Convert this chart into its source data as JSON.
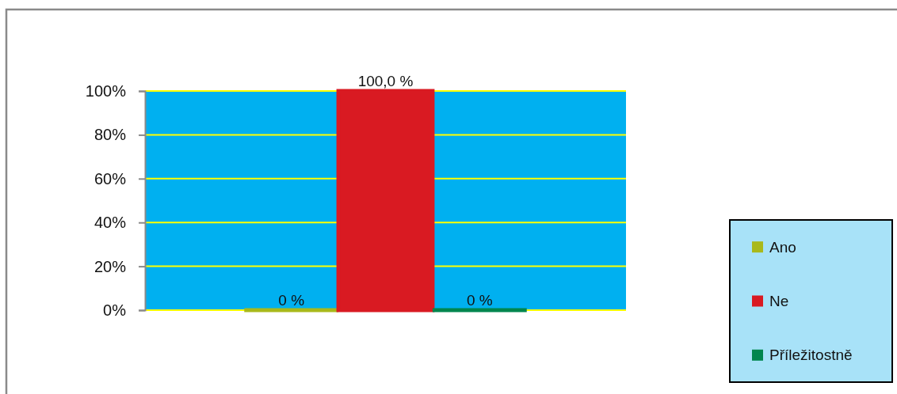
{
  "chart_data": {
    "type": "bar",
    "categories": [
      null
    ],
    "series": [
      {
        "name": "Ano",
        "color": "#a9b91b",
        "values": [
          0
        ],
        "value_labels": [
          "0 %"
        ]
      },
      {
        "name": "Ne",
        "color": "#d91a22",
        "values": [
          100
        ],
        "value_labels": [
          "100,0 %"
        ]
      },
      {
        "name": "Příležitostně",
        "color": "#00864e",
        "values": [
          0
        ],
        "value_labels": [
          "0 %"
        ]
      }
    ],
    "ylim": [
      0,
      100
    ],
    "yticks": [
      {
        "value": 0,
        "label": "0%"
      },
      {
        "value": 20,
        "label": "20%"
      },
      {
        "value": 40,
        "label": "40%"
      },
      {
        "value": 60,
        "label": "60%"
      },
      {
        "value": 80,
        "label": "80%"
      },
      {
        "value": 100,
        "label": "100%"
      }
    ],
    "grid": "y",
    "legend": "right",
    "tick_labels": "y"
  }
}
